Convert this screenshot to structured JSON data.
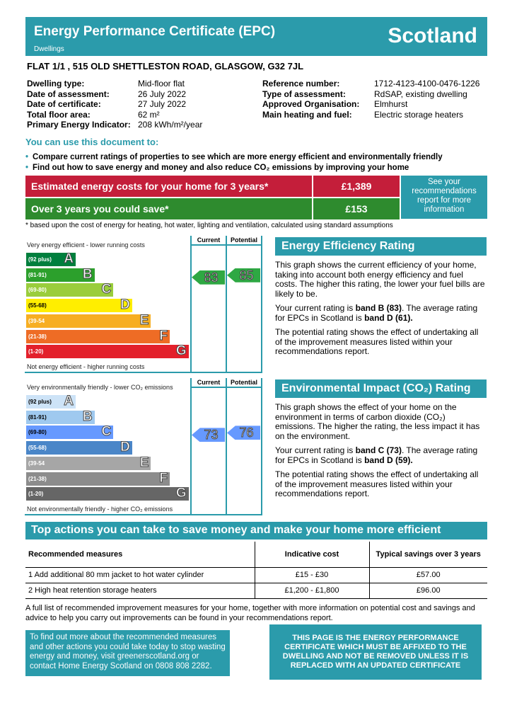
{
  "header": {
    "title": "Energy Performance Certificate (EPC)",
    "subtitle": "Dwellings",
    "region": "Scotland"
  },
  "address": "FLAT 1/1 , 515 OLD SHETTLESTON ROAD, GLASGOW, G32 7JL",
  "details_left": [
    {
      "label": "Dwelling type:",
      "value": "Mid-floor flat"
    },
    {
      "label": "Date of assessment:",
      "value": "26 July 2022"
    },
    {
      "label": "Date of certificate:",
      "value": "27 July 2022"
    },
    {
      "label": "Total floor area:",
      "value": "62 m²"
    },
    {
      "label": "Primary Energy Indicator:",
      "value": "208 kWh/m²/year"
    }
  ],
  "details_right": [
    {
      "label": "Reference number:",
      "value": "1712-4123-4100-0476-1226"
    },
    {
      "label": "Type of assessment:",
      "value": "RdSAP, existing dwelling"
    },
    {
      "label": "Approved Organisation:",
      "value": "Elmhurst"
    },
    {
      "label": "Main heating and fuel:",
      "value": "Electric storage heaters"
    }
  ],
  "use_heading": "You can use this document to:",
  "bullets": [
    "Compare current ratings of properties to see which are more energy efficient and environmentally friendly",
    "Find out how to save energy and money and also reduce CO₂ emissions by improving your home"
  ],
  "costs": {
    "estimated_label": "Estimated energy costs for your home for 3 years*",
    "estimated_value": "£1,389",
    "save_label": "Over 3 years you could save*",
    "save_value": "£153",
    "side_link": "See your recommendations report for more information",
    "footnote": "* based upon the cost of energy for heating, hot water, lighting and ventilation, calculated using standard assumptions",
    "colors": {
      "red": "#c41e3a",
      "green": "#2e8b2e"
    }
  },
  "energy_chart": {
    "top_caption": "Very energy efficient - lower running costs",
    "bottom_caption": "Not energy efficient - higher running costs",
    "current_header": "Current",
    "potential_header": "Potential",
    "current": "83",
    "potential": "85",
    "current_color": "#2ea843",
    "potential_color": "#2ea843",
    "bands": [
      {
        "range": "(92 plus)",
        "letter": "A",
        "color": "#007f3d"
      },
      {
        "range": "(81-91)",
        "letter": "B",
        "color": "#2ca02c"
      },
      {
        "range": "(69-80)",
        "letter": "C",
        "color": "#9acd3c"
      },
      {
        "range": "(55-68)",
        "letter": "D",
        "color": "#ffee00"
      },
      {
        "range": "(39-54",
        "letter": "E",
        "color": "#f7ae22"
      },
      {
        "range": "(21-38)",
        "letter": "F",
        "color": "#ee6c25"
      },
      {
        "range": "(1-20)",
        "letter": "G",
        "color": "#e3202b"
      }
    ]
  },
  "env_chart": {
    "top_caption": "Very environmentally friendly - lower CO₂ emissions",
    "bottom_caption": "Not environmentally friendly - higher CO₂ emissions",
    "current_header": "Current",
    "potential_header": "Potential",
    "current": "73",
    "potential": "76",
    "current_color": "#6699ff",
    "potential_color": "#6699ff",
    "bands": [
      {
        "range": "(92 plus)",
        "letter": "A",
        "color": "#cde3f7"
      },
      {
        "range": "(81-91)",
        "letter": "B",
        "color": "#9fc9ef"
      },
      {
        "range": "(69-80)",
        "letter": "C",
        "color": "#6699ff"
      },
      {
        "range": "(55-68)",
        "letter": "D",
        "color": "#4a86c8"
      },
      {
        "range": "(39-54",
        "letter": "E",
        "color": "#a6a6a6"
      },
      {
        "range": "(21-38)",
        "letter": "F",
        "color": "#8c8c8c"
      },
      {
        "range": "(1-20)",
        "letter": "G",
        "color": "#666666"
      }
    ]
  },
  "eer": {
    "title": "Energy Efficiency Rating",
    "p1": "This graph shows the current efficiency of your home, taking into account both energy efficiency and fuel costs. The higher this rating, the lower your fuel bills are likely to be.",
    "p2a": "Your current rating is ",
    "p2b": "band B (83)",
    "p2c": ". The average rating for EPCs in Scotland is ",
    "p2d": "band D (61).",
    "p3": "The potential rating shows the effect of undertaking all of the improvement measures listed within your recommendations report."
  },
  "eir": {
    "title": "Environmental Impact (CO₂) Rating",
    "p1": "This graph shows the effect of your home on the environment in terms of carbon dioxide (CO₂) emissions. The higher the rating, the less impact it has on the environment.",
    "p2a": "Your current rating is ",
    "p2b": "band C (73)",
    "p2c": ". The average rating for EPCs in Scotland is ",
    "p2d": "band D (59).",
    "p3": "The potential rating shows the effect of undertaking all of the improvement measures listed within your recommendations report."
  },
  "actions": {
    "title": "Top actions you can take to save money and make your home more efficient",
    "headers": [
      "Recommended measures",
      "Indicative cost",
      "Typical savings over 3 years"
    ],
    "rows": [
      [
        "1 Add additional 80 mm jacket to hot water cylinder",
        "£15 - £30",
        "£57.00"
      ],
      [
        "2 High heat retention storage heaters",
        "£1,200 - £1,800",
        "£96.00"
      ]
    ]
  },
  "paragraph": "A full list of recommended improvement measures for your home, together with more information on potential cost and savings and advice to help you carry out improvements can be found in your recommendations report.",
  "info_box": "To find out more about the recommended measures and other actions you could take today to stop wasting energy and money, visit greenerscotland.org or contact Home Energy Scotland on 0808 808 2282.",
  "notice_box": "THIS PAGE IS THE ENERGY PERFORMANCE CERTIFICATE WHICH MUST BE AFFIXED TO THE DWELLING AND NOT BE REMOVED UNLESS IT IS REPLACED WITH AN UPDATED CERTIFICATE"
}
